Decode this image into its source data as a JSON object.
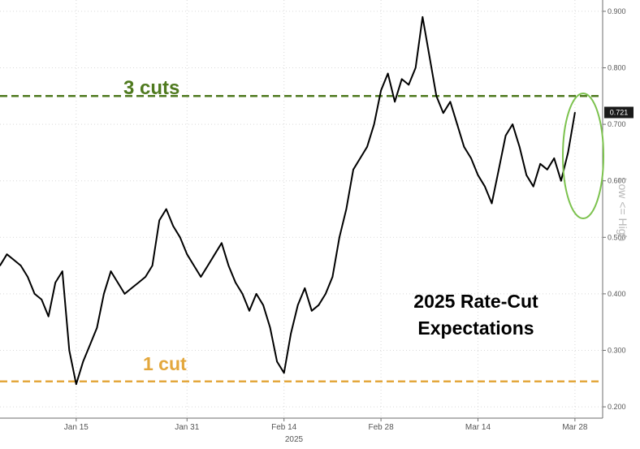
{
  "chart_data": {
    "type": "line",
    "title": "2025 Rate-Cut Expectations",
    "title_lines": [
      "2025 Rate-Cut",
      "Expectations"
    ],
    "y_axis_label": "Low <= High",
    "year_label": "2025",
    "ylim": [
      0.18,
      0.92
    ],
    "y_ticks": [
      {
        "value": 0.9,
        "label": "0.900"
      },
      {
        "value": 0.8,
        "label": "0.800"
      },
      {
        "value": 0.7,
        "label": "0.700"
      },
      {
        "value": 0.6,
        "label": "0.600"
      },
      {
        "value": 0.5,
        "label": "0.500"
      },
      {
        "value": 0.4,
        "label": "0.400"
      },
      {
        "value": 0.3,
        "label": "0.300"
      },
      {
        "value": 0.2,
        "label": "0.200"
      }
    ],
    "x_ticks": [
      {
        "label": "Jan 15",
        "date": "2025-01-15"
      },
      {
        "label": "Jan 31",
        "date": "2025-01-31"
      },
      {
        "label": "Feb 14",
        "date": "2025-02-14"
      },
      {
        "label": "Feb 28",
        "date": "2025-02-28"
      },
      {
        "label": "Mar 14",
        "date": "2025-03-14"
      },
      {
        "label": "Mar 28",
        "date": "2025-03-28"
      }
    ],
    "x_range": [
      "2025-01-04",
      "2025-04-01"
    ],
    "last_value": {
      "value": 0.721,
      "label": "0.721"
    },
    "reference_lines": [
      {
        "label": "3 cuts",
        "value": 0.75,
        "color": "#4f7a1f",
        "style": "dashed"
      },
      {
        "label": "1 cut",
        "value": 0.245,
        "color": "#e3a73c",
        "style": "dashed"
      }
    ],
    "highlight_ellipse_color": "#7cc24e",
    "line_color": "#000000",
    "series": [
      {
        "values": [
          [
            "2025-01-04",
            0.45
          ],
          [
            "2025-01-05",
            0.47
          ],
          [
            "2025-01-06",
            0.46
          ],
          [
            "2025-01-07",
            0.45
          ],
          [
            "2025-01-08",
            0.43
          ],
          [
            "2025-01-09",
            0.4
          ],
          [
            "2025-01-10",
            0.39
          ],
          [
            "2025-01-11",
            0.36
          ],
          [
            "2025-01-12",
            0.42
          ],
          [
            "2025-01-13",
            0.44
          ],
          [
            "2025-01-14",
            0.3
          ],
          [
            "2025-01-15",
            0.24
          ],
          [
            "2025-01-16",
            0.28
          ],
          [
            "2025-01-17",
            0.31
          ],
          [
            "2025-01-18",
            0.34
          ],
          [
            "2025-01-19",
            0.4
          ],
          [
            "2025-01-20",
            0.44
          ],
          [
            "2025-01-21",
            0.42
          ],
          [
            "2025-01-22",
            0.4
          ],
          [
            "2025-01-23",
            0.41
          ],
          [
            "2025-01-24",
            0.42
          ],
          [
            "2025-01-25",
            0.43
          ],
          [
            "2025-01-26",
            0.45
          ],
          [
            "2025-01-27",
            0.53
          ],
          [
            "2025-01-28",
            0.55
          ],
          [
            "2025-01-29",
            0.52
          ],
          [
            "2025-01-30",
            0.5
          ],
          [
            "2025-01-31",
            0.47
          ],
          [
            "2025-02-01",
            0.45
          ],
          [
            "2025-02-02",
            0.43
          ],
          [
            "2025-02-03",
            0.45
          ],
          [
            "2025-02-04",
            0.47
          ],
          [
            "2025-02-05",
            0.49
          ],
          [
            "2025-02-06",
            0.45
          ],
          [
            "2025-02-07",
            0.42
          ],
          [
            "2025-02-08",
            0.4
          ],
          [
            "2025-02-09",
            0.37
          ],
          [
            "2025-02-10",
            0.4
          ],
          [
            "2025-02-11",
            0.38
          ],
          [
            "2025-02-12",
            0.34
          ],
          [
            "2025-02-13",
            0.28
          ],
          [
            "2025-02-14",
            0.26
          ],
          [
            "2025-02-15",
            0.33
          ],
          [
            "2025-02-16",
            0.38
          ],
          [
            "2025-02-17",
            0.41
          ],
          [
            "2025-02-18",
            0.37
          ],
          [
            "2025-02-19",
            0.38
          ],
          [
            "2025-02-20",
            0.4
          ],
          [
            "2025-02-21",
            0.43
          ],
          [
            "2025-02-22",
            0.5
          ],
          [
            "2025-02-23",
            0.55
          ],
          [
            "2025-02-24",
            0.62
          ],
          [
            "2025-02-25",
            0.64
          ],
          [
            "2025-02-26",
            0.66
          ],
          [
            "2025-02-27",
            0.7
          ],
          [
            "2025-02-28",
            0.76
          ],
          [
            "2025-03-01",
            0.79
          ],
          [
            "2025-03-02",
            0.74
          ],
          [
            "2025-03-03",
            0.78
          ],
          [
            "2025-03-04",
            0.77
          ],
          [
            "2025-03-05",
            0.8
          ],
          [
            "2025-03-06",
            0.89
          ],
          [
            "2025-03-07",
            0.82
          ],
          [
            "2025-03-08",
            0.75
          ],
          [
            "2025-03-09",
            0.72
          ],
          [
            "2025-03-10",
            0.74
          ],
          [
            "2025-03-11",
            0.7
          ],
          [
            "2025-03-12",
            0.66
          ],
          [
            "2025-03-13",
            0.64
          ],
          [
            "2025-03-14",
            0.61
          ],
          [
            "2025-03-15",
            0.59
          ],
          [
            "2025-03-16",
            0.56
          ],
          [
            "2025-03-17",
            0.62
          ],
          [
            "2025-03-18",
            0.68
          ],
          [
            "2025-03-19",
            0.7
          ],
          [
            "2025-03-20",
            0.66
          ],
          [
            "2025-03-21",
            0.61
          ],
          [
            "2025-03-22",
            0.59
          ],
          [
            "2025-03-23",
            0.63
          ],
          [
            "2025-03-24",
            0.62
          ],
          [
            "2025-03-25",
            0.64
          ],
          [
            "2025-03-26",
            0.6
          ],
          [
            "2025-03-27",
            0.65
          ],
          [
            "2025-03-28",
            0.721
          ]
        ]
      }
    ]
  }
}
